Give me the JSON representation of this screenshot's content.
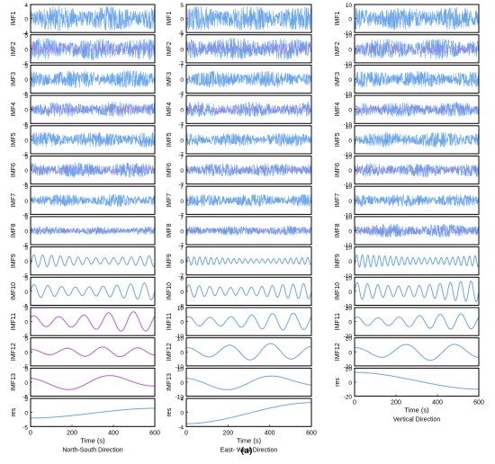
{
  "figure": {
    "panel_label": "(a)"
  },
  "chart_data": [
    {
      "type": "line",
      "title": "North-South Direction",
      "xlabel": "Time (s)",
      "xlim": [
        0,
        600
      ],
      "x_ticks": [
        "0",
        "200",
        "400",
        "600"
      ],
      "colors": {
        "signal": "#6aa6ee",
        "overlay": "#c45ad8"
      },
      "subplots": [
        {
          "label": "IMF1",
          "yticks": [
            "4",
            "0",
            "-4"
          ],
          "ylim": [
            -4,
            4
          ],
          "periods": 0,
          "amp": 0.9,
          "noise": true
        },
        {
          "label": "IMF2",
          "yticks": [
            "5",
            "0",
            "-5"
          ],
          "ylim": [
            -5,
            5
          ],
          "periods": 0,
          "amp": 0.8,
          "noise": true
        },
        {
          "label": "IMF3",
          "yticks": [
            "5",
            "0",
            "-5"
          ],
          "ylim": [
            -5,
            5
          ],
          "periods": 0,
          "amp": 0.65,
          "noise": true
        },
        {
          "label": "IMF4",
          "yticks": [
            "5",
            "0",
            "-5"
          ],
          "ylim": [
            -5,
            5
          ],
          "periods": 0,
          "amp": 0.55,
          "noise": true
        },
        {
          "label": "IMF5",
          "yticks": [
            "5",
            "0",
            "-5"
          ],
          "ylim": [
            -5,
            5
          ],
          "periods": 0,
          "amp": 0.55,
          "noise": true
        },
        {
          "label": "IMF6",
          "yticks": [
            "5",
            "0",
            "-5"
          ],
          "ylim": [
            -5,
            5
          ],
          "periods": 0,
          "amp": 0.55,
          "noise": true
        },
        {
          "label": "IMF7",
          "yticks": [
            "5",
            "0",
            "-5"
          ],
          "ylim": [
            -5,
            5
          ],
          "periods": 0,
          "amp": 0.45,
          "noise": true
        },
        {
          "label": "IMF8",
          "yticks": [
            "5",
            "0",
            "-5"
          ],
          "ylim": [
            -5,
            5
          ],
          "periods": 0,
          "amp": 0.3,
          "noise": true
        },
        {
          "label": "IMF9",
          "yticks": [
            "5",
            "0",
            "-5"
          ],
          "ylim": [
            -5,
            5
          ],
          "periods": 14,
          "amp": 0.45,
          "noise": false
        },
        {
          "label": "IMF10",
          "yticks": [
            "5",
            "0",
            "-5"
          ],
          "ylim": [
            -5,
            5
          ],
          "periods": 9,
          "amp": 0.6,
          "noise": false
        },
        {
          "label": "IMF11",
          "yticks": [
            "5",
            "0",
            "-5"
          ],
          "ylim": [
            -5,
            5
          ],
          "periods": 5,
          "amp": 0.7,
          "noise": false
        },
        {
          "label": "IMF12",
          "yticks": [
            "5",
            "0",
            "-5"
          ],
          "ylim": [
            -5,
            5
          ],
          "periods": 3.5,
          "amp": 0.35,
          "noise": false
        },
        {
          "label": "IMF13",
          "yticks": [
            "5",
            "0",
            "-5"
          ],
          "ylim": [
            -5,
            5
          ],
          "periods": 1.4,
          "amp": 0.55,
          "noise": false
        },
        {
          "label": "res",
          "yticks": [
            "5",
            "0",
            "-5"
          ],
          "ylim": [
            -5,
            5
          ],
          "trend": [
            -0.4,
            0.3
          ]
        }
      ]
    },
    {
      "type": "line",
      "title": "East- West Direction",
      "xlabel": "Time (s)",
      "xlim": [
        0,
        600
      ],
      "x_ticks": [
        "0",
        "200",
        "400",
        "600"
      ],
      "colors": {
        "signal": "#6aa6ee",
        "overlay": "#c45ad8"
      },
      "subplots": [
        {
          "label": "IMF1",
          "yticks": [
            "5",
            "0",
            "-5"
          ],
          "ylim": [
            -5,
            5
          ],
          "periods": 0,
          "amp": 0.9,
          "noise": true
        },
        {
          "label": "IMF2",
          "yticks": [
            "7",
            "0",
            "-7"
          ],
          "ylim": [
            -7,
            7
          ],
          "periods": 0,
          "amp": 0.8,
          "noise": true
        },
        {
          "label": "IMF3",
          "yticks": [
            "7",
            "0",
            "-7"
          ],
          "ylim": [
            -7,
            7
          ],
          "periods": 0,
          "amp": 0.6,
          "noise": true
        },
        {
          "label": "IMF4",
          "yticks": [
            "7",
            "0",
            "-7"
          ],
          "ylim": [
            -7,
            7
          ],
          "periods": 0,
          "amp": 0.55,
          "noise": true
        },
        {
          "label": "IMF5",
          "yticks": [
            "7",
            "0",
            "-7"
          ],
          "ylim": [
            -7,
            7
          ],
          "periods": 0,
          "amp": 0.5,
          "noise": true
        },
        {
          "label": "IMF6",
          "yticks": [
            "7",
            "0",
            "-7"
          ],
          "ylim": [
            -7,
            7
          ],
          "periods": 0,
          "amp": 0.5,
          "noise": true
        },
        {
          "label": "IMF7",
          "yticks": [
            "7",
            "0",
            "-7"
          ],
          "ylim": [
            -7,
            7
          ],
          "periods": 0,
          "amp": 0.45,
          "noise": true
        },
        {
          "label": "IMF8",
          "yticks": [
            "7",
            "0",
            "-7"
          ],
          "ylim": [
            -7,
            7
          ],
          "periods": 0,
          "amp": 0.35,
          "noise": true
        },
        {
          "label": "IMF9",
          "yticks": [
            "7",
            "0",
            "-7"
          ],
          "ylim": [
            -7,
            7
          ],
          "periods": 22,
          "amp": 0.3,
          "noise": false
        },
        {
          "label": "IMF10",
          "yticks": [
            "8",
            "0",
            "-8"
          ],
          "ylim": [
            -8,
            8
          ],
          "periods": 12,
          "amp": 0.55,
          "noise": false
        },
        {
          "label": "IMF11",
          "yticks": [
            "10",
            "0",
            "-10"
          ],
          "ylim": [
            -10,
            10
          ],
          "periods": 6,
          "amp": 0.6,
          "noise": false
        },
        {
          "label": "IMF12",
          "yticks": [
            "10",
            "0",
            "-10"
          ],
          "ylim": [
            -10,
            10
          ],
          "periods": 3,
          "amp": 0.6,
          "noise": false
        },
        {
          "label": "IMF13",
          "yticks": [
            "10",
            "0",
            "-10"
          ],
          "ylim": [
            -10,
            10
          ],
          "periods": 1.3,
          "amp": 0.55,
          "noise": false
        },
        {
          "label": "res",
          "yticks": [
            "4",
            "0",
            "-4"
          ],
          "ylim": [
            -4,
            4
          ],
          "trend": [
            -0.8,
            0.7
          ]
        }
      ]
    },
    {
      "type": "line",
      "title": "Vertical Direction",
      "xlabel": "Time (s)",
      "xlim": [
        0,
        600
      ],
      "x_ticks": [
        "0",
        "200",
        "400",
        "600"
      ],
      "colors": {
        "signal": "#6aa6ee",
        "overlay": "#c45ad8"
      },
      "subplots": [
        {
          "label": "IMF1",
          "yticks": [
            "10",
            "0",
            "-10"
          ],
          "ylim": [
            -10,
            10
          ],
          "periods": 0,
          "amp": 0.85,
          "noise": true
        },
        {
          "label": "IMF2",
          "yticks": [
            "10",
            "0",
            "-10"
          ],
          "ylim": [
            -10,
            10
          ],
          "periods": 0,
          "amp": 0.75,
          "noise": true
        },
        {
          "label": "IMF3",
          "yticks": [
            "10",
            "0",
            "-10"
          ],
          "ylim": [
            -10,
            10
          ],
          "periods": 0,
          "amp": 0.6,
          "noise": true
        },
        {
          "label": "IMF4",
          "yticks": [
            "10",
            "0",
            "-10"
          ],
          "ylim": [
            -10,
            10
          ],
          "periods": 0,
          "amp": 0.55,
          "noise": true
        },
        {
          "label": "IMF5",
          "yticks": [
            "10",
            "0",
            "-10"
          ],
          "ylim": [
            -10,
            10
          ],
          "periods": 0,
          "amp": 0.55,
          "noise": true
        },
        {
          "label": "IMF6",
          "yticks": [
            "10",
            "0",
            "-10"
          ],
          "ylim": [
            -10,
            10
          ],
          "periods": 0,
          "amp": 0.5,
          "noise": true
        },
        {
          "label": "IMF7",
          "yticks": [
            "10",
            "0",
            "-10"
          ],
          "ylim": [
            -10,
            10
          ],
          "periods": 0,
          "amp": 0.45,
          "noise": true
        },
        {
          "label": "IMF8",
          "yticks": [
            "10",
            "0",
            "-10"
          ],
          "ylim": [
            -10,
            10
          ],
          "periods": 0,
          "amp": 0.5,
          "noise": true
        },
        {
          "label": "IMF9",
          "yticks": [
            "10",
            "0",
            "-10"
          ],
          "ylim": [
            -10,
            10
          ],
          "periods": 22,
          "amp": 0.45,
          "noise": false
        },
        {
          "label": "IMF10",
          "yticks": [
            "10",
            "0",
            "-10"
          ],
          "ylim": [
            -10,
            10
          ],
          "periods": 12,
          "amp": 0.75,
          "noise": false
        },
        {
          "label": "IMF11",
          "yticks": [
            "20",
            "0",
            "-20"
          ],
          "ylim": [
            -20,
            20
          ],
          "periods": 6,
          "amp": 0.55,
          "noise": false
        },
        {
          "label": "IMF12",
          "yticks": [
            "20",
            "0",
            "-20"
          ],
          "ylim": [
            -20,
            20
          ],
          "periods": 2.5,
          "amp": 0.6,
          "noise": false
        },
        {
          "label": "res",
          "yticks": [
            "20",
            "0",
            "-20"
          ],
          "ylim": [
            -20,
            20
          ],
          "trend": [
            0.7,
            -0.5
          ]
        }
      ]
    }
  ]
}
